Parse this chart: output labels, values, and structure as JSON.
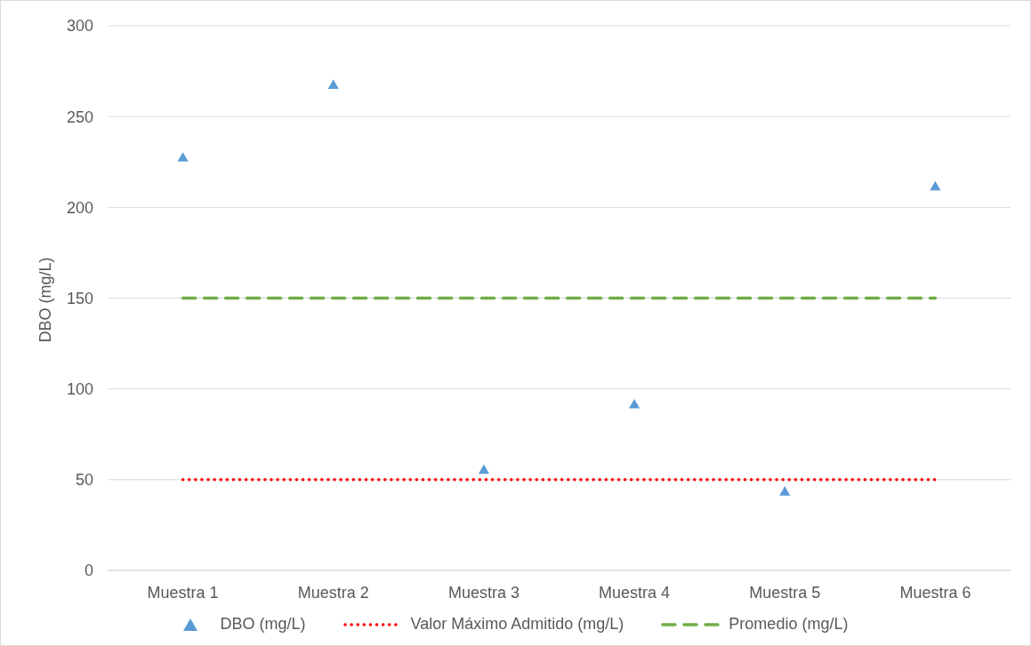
{
  "chart_data": {
    "type": "line",
    "ylabel": "DBO (mg/L)",
    "categories": [
      "Muestra 1",
      "Muestra 2",
      "Muestra 3",
      "Muestra 4",
      "Muestra 5",
      "Muestra 6"
    ],
    "series": [
      {
        "name": "DBO (mg/L)",
        "type": "scatter",
        "marker": "triangle",
        "color": "#5b9bd5",
        "values": [
          227,
          267,
          55,
          91,
          43,
          211
        ]
      },
      {
        "name": "Valor Máximo Admitido (mg/L)",
        "type": "line",
        "marker": "none",
        "line_style": "dotted",
        "color": "#ff0000",
        "values": [
          50,
          50,
          50,
          50,
          50,
          50
        ]
      },
      {
        "name": "Promedio (mg/L)",
        "type": "line",
        "marker": "none",
        "line_style": "dashed",
        "color": "#70ad47",
        "values": [
          150,
          150,
          150,
          150,
          150,
          150
        ]
      }
    ],
    "ylim": [
      0,
      300
    ],
    "yticks": [
      0,
      50,
      100,
      150,
      200,
      250,
      300
    ],
    "grid": "y",
    "legend": "bottom"
  }
}
